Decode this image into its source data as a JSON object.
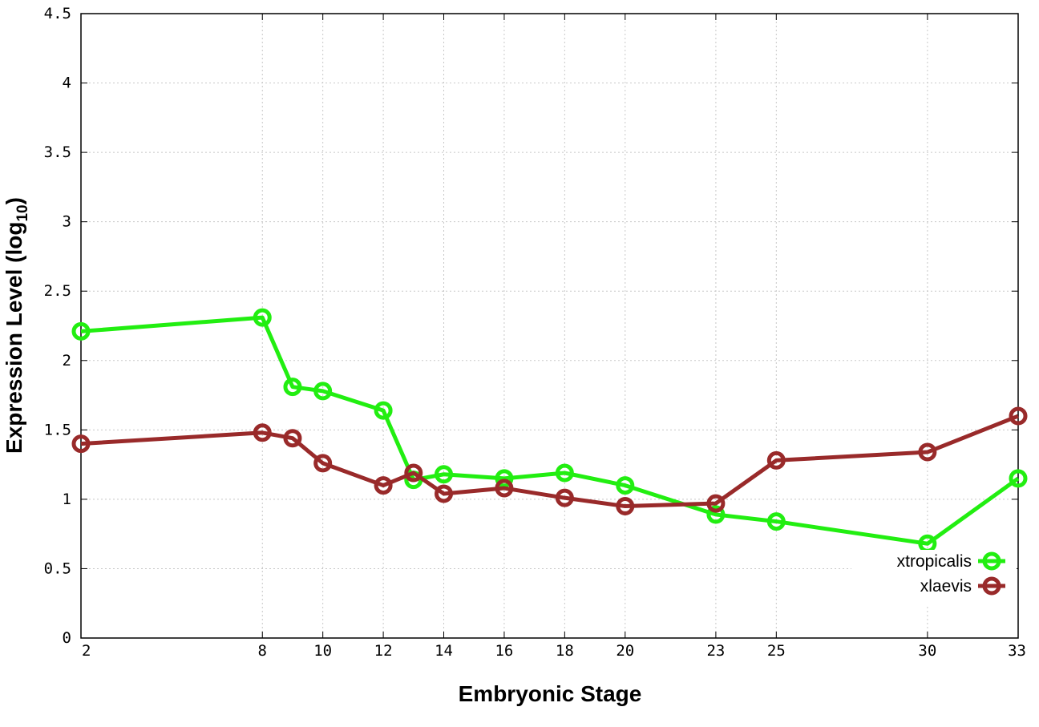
{
  "chart_data": {
    "type": "line",
    "xlabel": "Embryonic Stage",
    "ylabel_main": "Expression Level (log",
    "ylabel_sub": "10",
    "ylabel_close": ")",
    "x_categories": [
      "2",
      "8",
      "9",
      "10",
      "12",
      "13",
      "14",
      "16",
      "18",
      "20",
      "23",
      "25",
      "30",
      "33"
    ],
    "x_tick_labels": [
      "2",
      "8",
      "10",
      "12",
      "14",
      "16",
      "18",
      "20",
      "23",
      "25",
      "30",
      "33"
    ],
    "y_ticks": [
      "0",
      "0.5",
      "1",
      "1.5",
      "2",
      "2.5",
      "3",
      "3.5",
      "4",
      "4.5"
    ],
    "ylim": [
      0,
      4.5
    ],
    "grid": true,
    "legend_position": "bottom-right",
    "series": [
      {
        "name": "xtropicalis",
        "color": "#22ee11",
        "values": [
          2.21,
          2.31,
          1.81,
          1.78,
          1.64,
          1.14,
          1.18,
          1.15,
          1.19,
          1.1,
          0.89,
          0.84,
          0.68,
          1.15
        ]
      },
      {
        "name": "xlaevis",
        "color": "#992a2a",
        "values": [
          1.4,
          1.48,
          1.44,
          1.26,
          1.1,
          1.19,
          1.04,
          1.08,
          1.01,
          0.95,
          0.97,
          1.28,
          1.34,
          1.6
        ]
      }
    ]
  }
}
